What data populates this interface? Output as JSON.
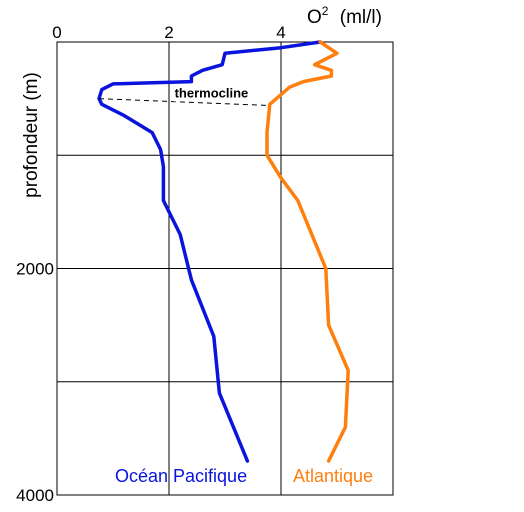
{
  "chart_data": {
    "type": "line",
    "xlabel": "O",
    "xlabel_sup": "2",
    "xlabel_unit": "(ml/l)",
    "ylabel": "profondeur (m)",
    "xlim": [
      0,
      6
    ],
    "ylim": [
      0,
      4000
    ],
    "y_inverted": true,
    "x_axis_position": "top",
    "x_ticks": [
      0,
      2,
      4
    ],
    "x_tick_labels": [
      "0",
      "2",
      "4"
    ],
    "x_gridlines": [
      2,
      4
    ],
    "y_ticks": [
      2000,
      4000
    ],
    "y_tick_labels": [
      "2000",
      "4000"
    ],
    "y_gridlines": [
      1000,
      2000,
      3000
    ],
    "grid": true,
    "series": [
      {
        "name": "Océan Pacifique",
        "color": "#0a14dc",
        "points": [
          {
            "x": 4.7,
            "y": 0
          },
          {
            "x": 4.0,
            "y": 50
          },
          {
            "x": 3.0,
            "y": 100
          },
          {
            "x": 2.95,
            "y": 200
          },
          {
            "x": 2.6,
            "y": 250
          },
          {
            "x": 2.4,
            "y": 300
          },
          {
            "x": 2.4,
            "y": 350
          },
          {
            "x": 1.0,
            "y": 370
          },
          {
            "x": 0.8,
            "y": 420
          },
          {
            "x": 0.75,
            "y": 500
          },
          {
            "x": 0.8,
            "y": 550
          },
          {
            "x": 1.2,
            "y": 650
          },
          {
            "x": 1.7,
            "y": 800
          },
          {
            "x": 1.85,
            "y": 950
          },
          {
            "x": 1.9,
            "y": 1100
          },
          {
            "x": 1.9,
            "y": 1400
          },
          {
            "x": 2.2,
            "y": 1700
          },
          {
            "x": 2.4,
            "y": 2100
          },
          {
            "x": 2.8,
            "y": 2600
          },
          {
            "x": 2.9,
            "y": 3100
          },
          {
            "x": 3.4,
            "y": 3700
          }
        ]
      },
      {
        "name": "Atlantique",
        "color": "#ff7f0e",
        "points": [
          {
            "x": 4.7,
            "y": 0
          },
          {
            "x": 5.0,
            "y": 100
          },
          {
            "x": 4.6,
            "y": 200
          },
          {
            "x": 4.9,
            "y": 250
          },
          {
            "x": 4.9,
            "y": 300
          },
          {
            "x": 4.4,
            "y": 350
          },
          {
            "x": 4.15,
            "y": 400
          },
          {
            "x": 3.8,
            "y": 550
          },
          {
            "x": 3.75,
            "y": 800
          },
          {
            "x": 3.75,
            "y": 1000
          },
          {
            "x": 4.0,
            "y": 1200
          },
          {
            "x": 4.3,
            "y": 1400
          },
          {
            "x": 4.8,
            "y": 2000
          },
          {
            "x": 4.85,
            "y": 2500
          },
          {
            "x": 5.2,
            "y": 2900
          },
          {
            "x": 5.15,
            "y": 3400
          },
          {
            "x": 4.85,
            "y": 3700
          }
        ]
      }
    ],
    "annotations": [
      {
        "text": "thermocline",
        "x": 2.1,
        "y": 490,
        "line_from": {
          "x": 0.75,
          "y": 500
        },
        "line_to": {
          "x": 3.75,
          "y": 560
        }
      }
    ],
    "legend": [
      {
        "text": "Océan Pacifique",
        "color": "#0a14dc",
        "placement": "bottom-left"
      },
      {
        "text": "Atlantique",
        "color": "#ff7f0e",
        "placement": "bottom-right"
      }
    ]
  }
}
